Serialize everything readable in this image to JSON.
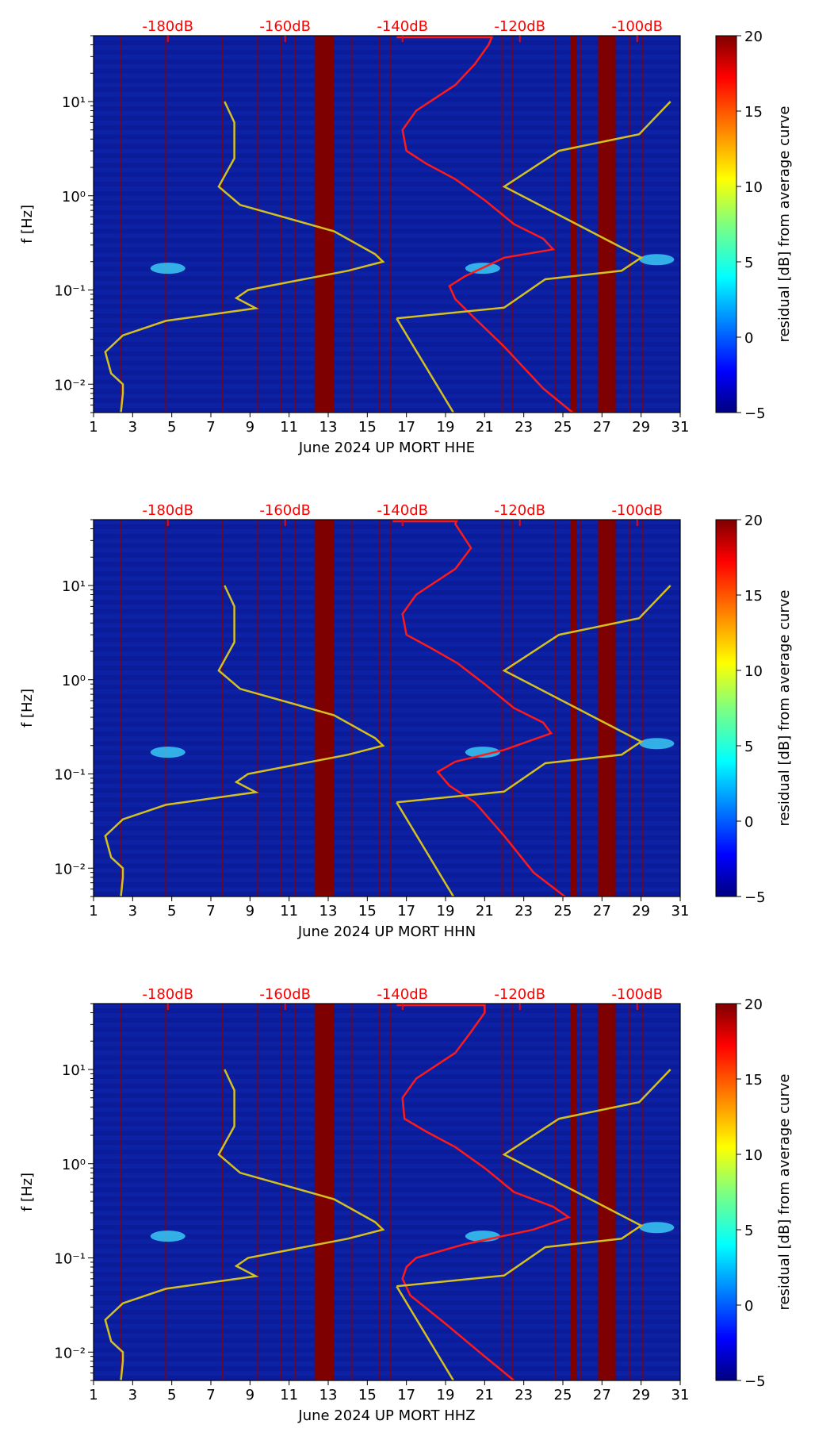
{
  "figure": {
    "colorbar_label": "residual [dB] from average curve",
    "ylabel": "f [Hz]",
    "top_axis_ticks": [
      "-180dB",
      "-160dB",
      "-140dB",
      "-120dB",
      "-100dB"
    ],
    "top_axis_color": "#ff0000"
  },
  "chart_data": [
    {
      "type": "heatmap",
      "title": "",
      "xlabel": "June 2024 UP MORT  HHE",
      "ylabel": "f [Hz]",
      "x_ticks": [
        "1",
        "3",
        "5",
        "7",
        "9",
        "11",
        "13",
        "15",
        "17",
        "19",
        "21",
        "23",
        "25",
        "27",
        "29",
        "31"
      ],
      "xlim": [
        1,
        31
      ],
      "y_ticks": [
        "10⁻²",
        "10⁻¹",
        "10⁰",
        "10¹"
      ],
      "ylim_hz": [
        0.005,
        50
      ],
      "colorbar_range": [
        -5,
        20
      ],
      "colorbar_ticks": [
        "20",
        "15",
        "10",
        "5",
        "0",
        "−5"
      ],
      "saturated_bands_days": [
        [
          12.3,
          13.3
        ],
        [
          26.8,
          27.7
        ]
      ],
      "red_curve": {
        "name": "average PSD curve (top axis, dB)",
        "points": [
          [
            25.5,
            0.005
          ],
          [
            24,
            0.009
          ],
          [
            22,
            0.025
          ],
          [
            20.5,
            0.05
          ],
          [
            19.5,
            0.08
          ],
          [
            19.2,
            0.11
          ],
          [
            20,
            0.14
          ],
          [
            22,
            0.22
          ],
          [
            24.5,
            0.27
          ],
          [
            24,
            0.35
          ],
          [
            22.5,
            0.5
          ],
          [
            21,
            0.9
          ],
          [
            19.5,
            1.5
          ],
          [
            18,
            2.2
          ],
          [
            17,
            3
          ],
          [
            16.8,
            5
          ],
          [
            17.5,
            8
          ],
          [
            19.5,
            15
          ],
          [
            20.5,
            25
          ],
          [
            21.2,
            40
          ],
          [
            21.4,
            50
          ]
        ],
        "top_segment": [
          16.5,
          21.4
        ]
      },
      "yellow_curve": {
        "name": "reference noise models (bottom axis = dB scale)",
        "points": [
          [
            2.4,
            0.005
          ],
          [
            2.5,
            0.008
          ],
          [
            2.5,
            0.01
          ],
          [
            1.9,
            0.013
          ],
          [
            1.6,
            0.022
          ],
          [
            2.5,
            0.033
          ],
          [
            4.7,
            0.047
          ],
          [
            9.3,
            0.064
          ],
          [
            8.3,
            0.082
          ],
          [
            8.9,
            0.1
          ],
          [
            14,
            0.16
          ],
          [
            15.8,
            0.2
          ],
          [
            15.4,
            0.24
          ],
          [
            13.3,
            0.42
          ],
          [
            8.5,
            0.8
          ],
          [
            7.4,
            1.25
          ],
          [
            8.2,
            2.5
          ],
          [
            8.2,
            6
          ],
          [
            7.7,
            10
          ]
        ]
      },
      "yellow_curve_right": {
        "points": [
          [
            16.5,
            0.05
          ],
          [
            22,
            0.065
          ],
          [
            24.1,
            0.13
          ],
          [
            28,
            0.16
          ],
          [
            29,
            0.22
          ],
          [
            22,
            1.25
          ],
          [
            24.8,
            3
          ],
          [
            28.9,
            4.5
          ],
          [
            30.5,
            10
          ]
        ]
      },
      "yellow_diag": {
        "points": [
          [
            16.5,
            0.05
          ],
          [
            19.4,
            0.005
          ]
        ]
      }
    },
    {
      "type": "heatmap",
      "title": "",
      "xlabel": "June 2024 UP MORT  HHN",
      "ylabel": "f [Hz]",
      "x_ticks": [
        "1",
        "3",
        "5",
        "7",
        "9",
        "11",
        "13",
        "15",
        "17",
        "19",
        "21",
        "23",
        "25",
        "27",
        "29",
        "31"
      ],
      "xlim": [
        1,
        31
      ],
      "y_ticks": [
        "10⁻²",
        "10⁻¹",
        "10⁰",
        "10¹"
      ],
      "ylim_hz": [
        0.005,
        50
      ],
      "colorbar_range": [
        -5,
        20
      ],
      "colorbar_ticks": [
        "20",
        "15",
        "10",
        "5",
        "0",
        "−5"
      ],
      "saturated_bands_days": [
        [
          12.3,
          13.3
        ],
        [
          26.8,
          27.7
        ]
      ],
      "red_curve": {
        "name": "average PSD curve",
        "points": [
          [
            25.1,
            0.005
          ],
          [
            23.5,
            0.009
          ],
          [
            22,
            0.022
          ],
          [
            20.5,
            0.05
          ],
          [
            19.2,
            0.075
          ],
          [
            18.6,
            0.105
          ],
          [
            19.5,
            0.135
          ],
          [
            22,
            0.18
          ],
          [
            24.4,
            0.27
          ],
          [
            24,
            0.35
          ],
          [
            22.5,
            0.5
          ],
          [
            21,
            0.9
          ],
          [
            19.6,
            1.5
          ],
          [
            18.2,
            2.2
          ],
          [
            17,
            3
          ],
          [
            16.8,
            5
          ],
          [
            17.5,
            8
          ],
          [
            19.5,
            15
          ],
          [
            20.3,
            25
          ],
          [
            19.5,
            45
          ],
          [
            19.6,
            50
          ]
        ],
        "top_segment": [
          16.3,
          19.6
        ]
      },
      "yellow_curve": {
        "points": [
          [
            2.4,
            0.005
          ],
          [
            2.5,
            0.008
          ],
          [
            2.5,
            0.01
          ],
          [
            1.9,
            0.013
          ],
          [
            1.6,
            0.022
          ],
          [
            2.5,
            0.033
          ],
          [
            4.7,
            0.047
          ],
          [
            9.3,
            0.064
          ],
          [
            8.3,
            0.082
          ],
          [
            8.9,
            0.1
          ],
          [
            14,
            0.16
          ],
          [
            15.8,
            0.2
          ],
          [
            15.4,
            0.24
          ],
          [
            13.3,
            0.42
          ],
          [
            8.5,
            0.8
          ],
          [
            7.4,
            1.25
          ],
          [
            8.2,
            2.5
          ],
          [
            8.2,
            6
          ],
          [
            7.7,
            10
          ]
        ]
      },
      "yellow_curve_right": {
        "points": [
          [
            16.5,
            0.05
          ],
          [
            22,
            0.065
          ],
          [
            24.1,
            0.13
          ],
          [
            28,
            0.16
          ],
          [
            29,
            0.22
          ],
          [
            22,
            1.25
          ],
          [
            24.8,
            3
          ],
          [
            28.9,
            4.5
          ],
          [
            30.5,
            10
          ]
        ]
      },
      "yellow_diag": {
        "points": [
          [
            16.5,
            0.05
          ],
          [
            19.4,
            0.005
          ]
        ]
      }
    },
    {
      "type": "heatmap",
      "title": "",
      "xlabel": "June 2024 UP MORT  HHZ",
      "ylabel": "f [Hz]",
      "x_ticks": [
        "1",
        "3",
        "5",
        "7",
        "9",
        "11",
        "13",
        "15",
        "17",
        "19",
        "21",
        "23",
        "25",
        "27",
        "29",
        "31"
      ],
      "xlim": [
        1,
        31
      ],
      "y_ticks": [
        "10⁻²",
        "10⁻¹",
        "10⁰",
        "10¹"
      ],
      "ylim_hz": [
        0.005,
        50
      ],
      "colorbar_range": [
        -5,
        20
      ],
      "colorbar_ticks": [
        "20",
        "15",
        "10",
        "5",
        "0",
        "−5"
      ],
      "saturated_bands_days": [
        [
          12.3,
          13.3
        ],
        [
          26.8,
          27.7
        ]
      ],
      "red_curve": {
        "name": "average PSD curve",
        "points": [
          [
            22.5,
            0.005
          ],
          [
            21,
            0.009
          ],
          [
            19,
            0.02
          ],
          [
            17.2,
            0.04
          ],
          [
            16.8,
            0.06
          ],
          [
            17,
            0.08
          ],
          [
            17.5,
            0.1
          ],
          [
            20,
            0.14
          ],
          [
            23.5,
            0.2
          ],
          [
            25.3,
            0.27
          ],
          [
            24.5,
            0.35
          ],
          [
            22.5,
            0.5
          ],
          [
            21,
            0.9
          ],
          [
            19.5,
            1.5
          ],
          [
            18,
            2.2
          ],
          [
            16.9,
            3
          ],
          [
            16.8,
            5
          ],
          [
            17.5,
            8
          ],
          [
            19.5,
            15
          ],
          [
            20.3,
            25
          ],
          [
            21,
            40
          ],
          [
            21,
            50
          ]
        ],
        "top_segment": [
          16.5,
          21
        ]
      },
      "yellow_curve": {
        "points": [
          [
            2.4,
            0.005
          ],
          [
            2.5,
            0.008
          ],
          [
            2.5,
            0.01
          ],
          [
            1.9,
            0.013
          ],
          [
            1.6,
            0.022
          ],
          [
            2.5,
            0.033
          ],
          [
            4.7,
            0.047
          ],
          [
            9.3,
            0.064
          ],
          [
            8.3,
            0.082
          ],
          [
            8.9,
            0.1
          ],
          [
            14,
            0.16
          ],
          [
            15.8,
            0.2
          ],
          [
            15.4,
            0.24
          ],
          [
            13.3,
            0.42
          ],
          [
            8.5,
            0.8
          ],
          [
            7.4,
            1.25
          ],
          [
            8.2,
            2.5
          ],
          [
            8.2,
            6
          ],
          [
            7.7,
            10
          ]
        ]
      },
      "yellow_curve_right": {
        "points": [
          [
            16.5,
            0.05
          ],
          [
            22,
            0.065
          ],
          [
            24.1,
            0.13
          ],
          [
            28,
            0.16
          ],
          [
            29,
            0.22
          ],
          [
            22,
            1.25
          ],
          [
            24.8,
            3
          ],
          [
            28.9,
            4.5
          ],
          [
            30.5,
            10
          ]
        ]
      },
      "yellow_diag": {
        "points": [
          [
            16.5,
            0.05
          ],
          [
            19.4,
            0.005
          ]
        ]
      }
    }
  ]
}
